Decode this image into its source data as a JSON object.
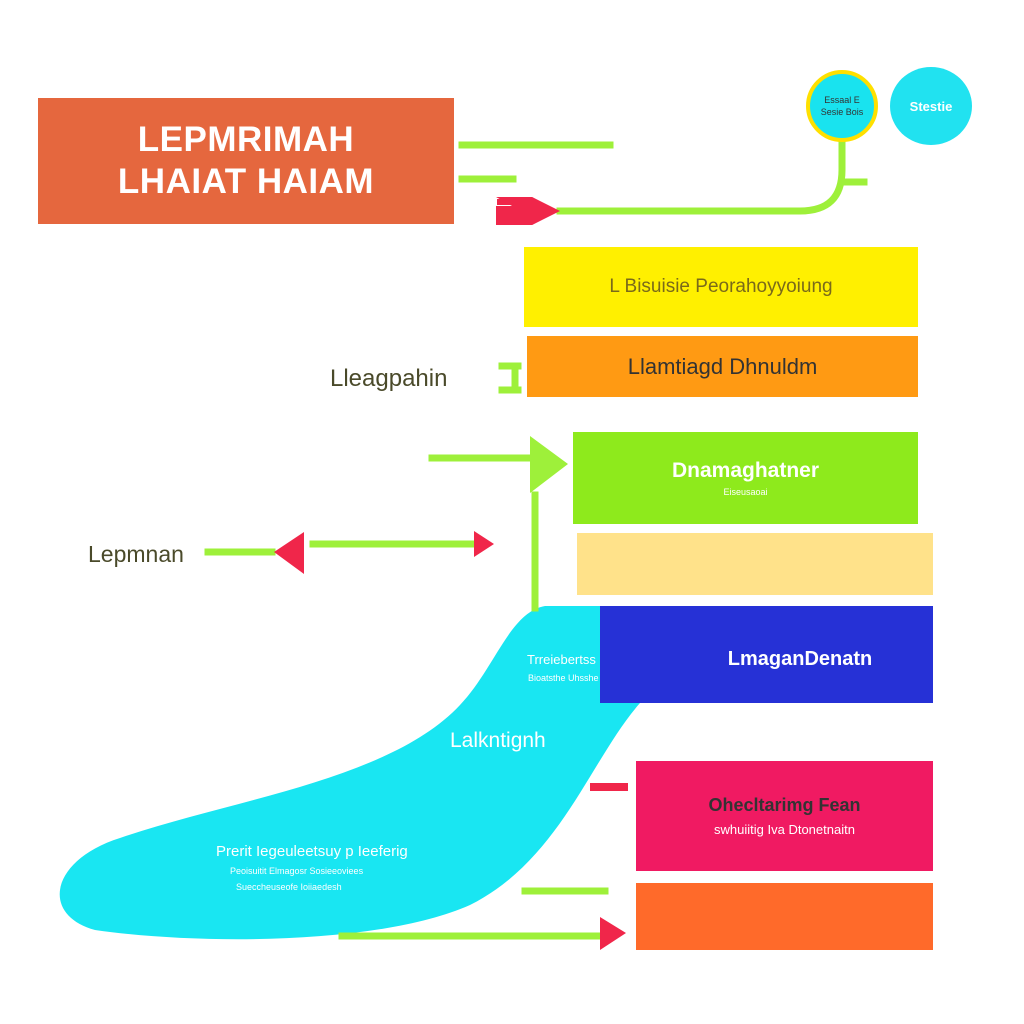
{
  "title": {
    "line1": "LEPMRIMAH",
    "line2": "LHAIAT HAIAM"
  },
  "circles": {
    "c1_line1": "Essaal E",
    "c1_line2": "Sesie Bois",
    "c2": "Stestie"
  },
  "boxes": {
    "yellow": "L Bisuisie Peorahoyyoiung",
    "orange": "Llamtiagd Dhnuldm",
    "green_main": "Dnamaghatner",
    "green_sub": "Eiseusaoai",
    "blue": "LmaganDenatn",
    "pink_main": "Ohecltarimg Fean",
    "pink_sub": "swhuiitig Iva Dtonetnaitn"
  },
  "side_labels": {
    "leagpahin": "Lleagpahin",
    "lepmnan": "Lepmnan"
  },
  "flow": {
    "t1": "Trreiebertss",
    "t1_sub": "Bioatsthe Uhsshe",
    "t2": "Lalkntignh",
    "t3": "Prerit Iegeuleetsuy p Ieeferig",
    "t3_sub1": "Peoisuitit Elmagosr Sosieeoviees",
    "t3_sub2": "Sueccheuseofe Ioiiaedesh"
  },
  "colors": {
    "green_line": "#9ef03a",
    "red_arrow": "#f0264a",
    "cyan": "#19e6f2"
  }
}
